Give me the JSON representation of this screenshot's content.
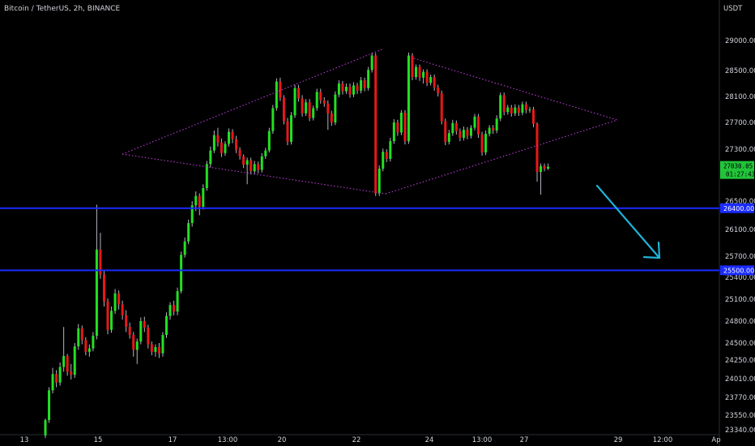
{
  "title": "Bitcoin / TetherUS, 2h, BINANCE",
  "currency": "USDT",
  "colors": {
    "background": "#000000",
    "up": "#22e022",
    "down": "#e81818",
    "wick": "#b2b5be",
    "level": "#1a2bff",
    "pattern": "#b83cd6",
    "arrow": "#1fb3d6",
    "price_badge": "#22c43a",
    "text": "#d1d4dc"
  },
  "chart_data": {
    "type": "candlestick",
    "ylim": [
      23250,
      29500
    ],
    "price_ticks": [
      "29000.00",
      "28500.00",
      "28100.00",
      "27700.00",
      "27300.00",
      "26500.00",
      "26100.00",
      "25700.00",
      "25400.00",
      "25100.00",
      "24800.00",
      "24500.00",
      "24250.00",
      "24010.00",
      "23770.00",
      "23550.00",
      "23340.00"
    ],
    "x_ticks": [
      "13",
      "15",
      "17",
      "13:00",
      "20",
      "22",
      "24",
      "13:00",
      "27",
      "29",
      "12:00",
      "Ap"
    ],
    "levels": [
      {
        "price": 26400,
        "label": "26400.00"
      },
      {
        "price": 25500,
        "label": "25500.00"
      }
    ],
    "current_price": {
      "price": 27030,
      "label": "27030.05",
      "countdown": "01:27:43"
    },
    "candles": [
      [
        23260,
        23480,
        23220,
        23500
      ],
      [
        23480,
        23860,
        23440,
        23900
      ],
      [
        23860,
        24070,
        23820,
        24150
      ],
      [
        24070,
        23960,
        23900,
        24120
      ],
      [
        23960,
        24160,
        23920,
        24220
      ],
      [
        24160,
        24310,
        24100,
        24720
      ],
      [
        24310,
        24100,
        24050,
        24340
      ],
      [
        24100,
        24060,
        24000,
        24200
      ],
      [
        24060,
        24450,
        24020,
        24500
      ],
      [
        24450,
        24700,
        24400,
        24760
      ],
      [
        24700,
        24540,
        24480,
        24740
      ],
      [
        24540,
        24370,
        24320,
        24580
      ],
      [
        24370,
        24420,
        24300,
        24480
      ],
      [
        24420,
        24600,
        24380,
        24650
      ],
      [
        24600,
        25800,
        24550,
        26450
      ],
      [
        25800,
        25440,
        25380,
        26050
      ],
      [
        25440,
        25070,
        25000,
        25500
      ],
      [
        25070,
        24680,
        24620,
        25110
      ],
      [
        24680,
        24940,
        24640,
        25000
      ],
      [
        24940,
        25180,
        24900,
        25240
      ],
      [
        25180,
        25030,
        24960,
        25220
      ],
      [
        25030,
        24880,
        24820,
        25080
      ],
      [
        24880,
        24720,
        24650,
        24950
      ],
      [
        24720,
        24610,
        24560,
        24780
      ],
      [
        24610,
        24400,
        24300,
        24650
      ],
      [
        24400,
        24520,
        24200,
        24560
      ],
      [
        24520,
        24800,
        24480,
        24850
      ],
      [
        24800,
        24710,
        24650,
        24860
      ],
      [
        24710,
        24480,
        24420,
        24750
      ],
      [
        24480,
        24370,
        24320,
        24520
      ],
      [
        24370,
        24440,
        24300,
        24480
      ],
      [
        24440,
        24350,
        24280,
        24500
      ],
      [
        24350,
        24610,
        24300,
        24650
      ],
      [
        24610,
        24870,
        24570,
        24920
      ],
      [
        24870,
        25020,
        24820,
        25060
      ],
      [
        25020,
        24930,
        24880,
        25080
      ],
      [
        24930,
        25210,
        24880,
        25260
      ],
      [
        25210,
        25720,
        25180,
        25770
      ],
      [
        25720,
        25920,
        25680,
        25980
      ],
      [
        25920,
        26190,
        25880,
        26240
      ],
      [
        26190,
        26440,
        26140,
        26500
      ],
      [
        26440,
        26580,
        26360,
        26650
      ],
      [
        26580,
        26420,
        26300,
        26620
      ],
      [
        26420,
        26700,
        26380,
        26760
      ],
      [
        26700,
        27070,
        26660,
        27120
      ],
      [
        27070,
        27280,
        27020,
        27340
      ],
      [
        27280,
        27510,
        27240,
        27580
      ],
      [
        27510,
        27400,
        27340,
        27620
      ],
      [
        27400,
        27240,
        27180,
        27460
      ],
      [
        27240,
        27380,
        27200,
        27420
      ],
      [
        27380,
        27560,
        27340,
        27610
      ],
      [
        27560,
        27450,
        27390,
        27600
      ],
      [
        27450,
        27290,
        27240,
        27500
      ],
      [
        27290,
        27190,
        27140,
        27330
      ],
      [
        27190,
        27060,
        27010,
        27220
      ],
      [
        27060,
        27130,
        26760,
        27170
      ],
      [
        27130,
        26960,
        26910,
        27170
      ],
      [
        26960,
        27070,
        26910,
        27120
      ],
      [
        27070,
        26980,
        26930,
        27110
      ],
      [
        26980,
        27190,
        26940,
        27240
      ],
      [
        27190,
        27280,
        27150,
        27320
      ],
      [
        27280,
        27570,
        27250,
        27620
      ],
      [
        27570,
        27920,
        27530,
        27970
      ],
      [
        27920,
        28330,
        27880,
        28380
      ],
      [
        28330,
        28080,
        28030,
        28390
      ],
      [
        28080,
        27720,
        27670,
        28120
      ],
      [
        27720,
        27410,
        27360,
        27770
      ],
      [
        27410,
        27810,
        27370,
        27860
      ],
      [
        27810,
        28230,
        27770,
        28280
      ],
      [
        28230,
        28070,
        28020,
        28280
      ],
      [
        28070,
        27840,
        27790,
        28120
      ],
      [
        27840,
        28010,
        27800,
        28060
      ],
      [
        28010,
        27770,
        27720,
        28060
      ],
      [
        27770,
        27920,
        27730,
        27960
      ],
      [
        27920,
        28170,
        27880,
        28220
      ],
      [
        28170,
        28040,
        27990,
        28220
      ],
      [
        28040,
        27990,
        27940,
        28090
      ],
      [
        27990,
        27840,
        27590,
        28040
      ],
      [
        27840,
        27700,
        27650,
        27880
      ],
      [
        27700,
        28130,
        27660,
        28180
      ],
      [
        28130,
        28300,
        28090,
        28350
      ],
      [
        28300,
        28180,
        28130,
        28340
      ],
      [
        28180,
        28250,
        28140,
        28300
      ],
      [
        28250,
        28130,
        28080,
        28300
      ],
      [
        28130,
        28270,
        28090,
        28320
      ],
      [
        28270,
        28190,
        28140,
        28310
      ],
      [
        28190,
        28350,
        28150,
        28400
      ],
      [
        28350,
        28230,
        28180,
        28390
      ],
      [
        28230,
        28510,
        28190,
        28560
      ],
      [
        28510,
        28750,
        28470,
        28800
      ],
      [
        28750,
        26620,
        26580,
        28790
      ],
      [
        26620,
        27000,
        26580,
        27050
      ],
      [
        27000,
        27260,
        26960,
        27310
      ],
      [
        27260,
        27150,
        27100,
        27300
      ],
      [
        27150,
        27420,
        27110,
        27470
      ],
      [
        27420,
        27700,
        27380,
        27750
      ],
      [
        27700,
        27550,
        27500,
        27740
      ],
      [
        27550,
        27850,
        27510,
        27890
      ],
      [
        27850,
        27420,
        27370,
        27890
      ],
      [
        27420,
        28750,
        27380,
        28800
      ],
      [
        28750,
        28400,
        28350,
        28790
      ],
      [
        28400,
        28560,
        28360,
        28600
      ],
      [
        28560,
        28390,
        28340,
        28600
      ],
      [
        28390,
        28480,
        28300,
        28520
      ],
      [
        28480,
        28310,
        28260,
        28520
      ],
      [
        28310,
        28400,
        28270,
        28440
      ],
      [
        28400,
        28240,
        28190,
        28440
      ],
      [
        28240,
        28150,
        28100,
        28280
      ],
      [
        28150,
        27720,
        27670,
        28190
      ],
      [
        27720,
        27410,
        27360,
        27760
      ],
      [
        27410,
        27540,
        27370,
        27590
      ],
      [
        27540,
        27690,
        27500,
        27740
      ],
      [
        27690,
        27570,
        27520,
        27730
      ],
      [
        27570,
        27470,
        27420,
        27610
      ],
      [
        27470,
        27590,
        27430,
        27640
      ],
      [
        27590,
        27500,
        27450,
        27630
      ],
      [
        27500,
        27620,
        27460,
        27660
      ],
      [
        27620,
        27790,
        27580,
        27830
      ],
      [
        27790,
        27520,
        27470,
        27830
      ],
      [
        27520,
        27250,
        27200,
        27560
      ],
      [
        27250,
        27530,
        27210,
        27580
      ],
      [
        27530,
        27620,
        27490,
        27660
      ],
      [
        27620,
        27580,
        27530,
        27660
      ],
      [
        27580,
        27760,
        27540,
        27810
      ],
      [
        27760,
        28120,
        27720,
        28160
      ],
      [
        28120,
        27860,
        27810,
        28160
      ],
      [
        27860,
        27930,
        27820,
        27970
      ],
      [
        27930,
        27840,
        27790,
        27970
      ],
      [
        27840,
        27930,
        27800,
        27980
      ],
      [
        27930,
        27850,
        27800,
        27970
      ],
      [
        27850,
        27980,
        27810,
        28020
      ],
      [
        27980,
        27890,
        27840,
        28020
      ],
      [
        27890,
        27900,
        27850,
        27940
      ],
      [
        27900,
        27680,
        27630,
        27940
      ],
      [
        27680,
        26950,
        26800,
        27700
      ],
      [
        26950,
        27040,
        26600,
        27080
      ],
      [
        27040,
        27000,
        26960,
        27080
      ],
      [
        27000,
        27030,
        26980,
        27080
      ]
    ]
  }
}
